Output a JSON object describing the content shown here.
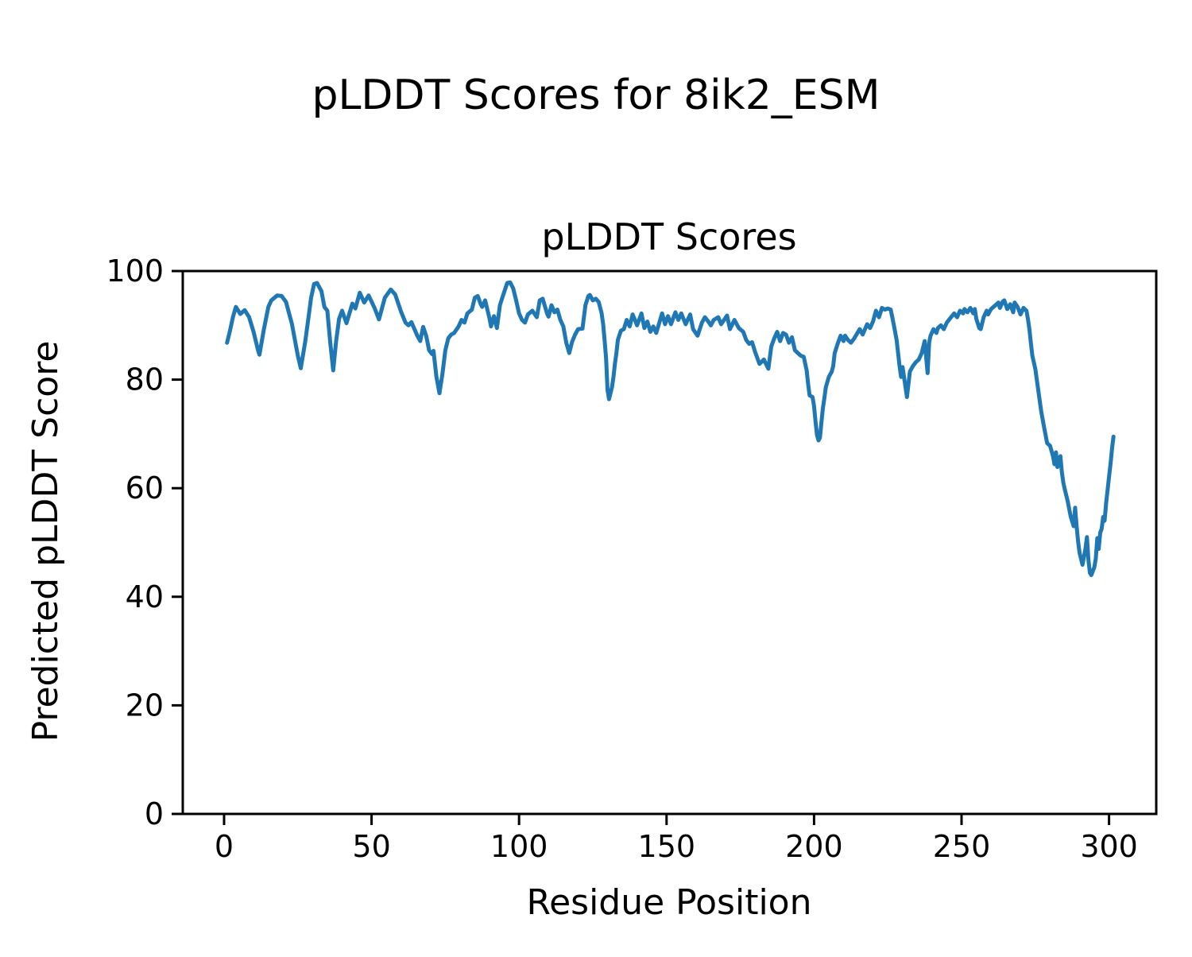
{
  "figure": {
    "suptitle": "pLDDT Scores for 8ik2_ESM",
    "background_color": "#ffffff",
    "text_color": "#000000"
  },
  "chart_data": {
    "type": "line",
    "title": "pLDDT Scores",
    "xlabel": "Residue Position",
    "ylabel": "Predicted pLDDT Score",
    "xlim": [
      -14,
      316
    ],
    "ylim": [
      0,
      100
    ],
    "xticks": [
      0,
      50,
      100,
      150,
      200,
      250,
      300
    ],
    "yticks": [
      0,
      20,
      40,
      60,
      80,
      100
    ],
    "grid": false,
    "legend": "none",
    "line_color": "#1f77b4",
    "line_width": 5,
    "spine_color": "#000000",
    "series": [
      {
        "name": "pLDDT",
        "x": [
          1,
          2,
          3,
          4,
          5.5,
          7,
          8.5,
          10,
          11.5,
          12,
          13.5,
          15,
          16,
          18,
          19.5,
          21,
          23,
          24,
          25,
          26,
          27.5,
          28.5,
          29.5,
          30.5,
          31.5,
          33,
          34,
          35,
          36,
          37,
          38,
          39,
          40,
          41.5,
          43.5,
          44.5,
          46,
          47.5,
          49,
          51,
          52.5,
          54.5,
          56.5,
          58,
          60,
          61.5,
          62.5,
          63.5,
          65.5,
          66.5,
          67.5,
          68.5,
          69.5,
          70.5,
          71,
          72,
          73,
          74,
          75,
          76,
          77,
          78,
          79.5,
          80.5,
          81.5,
          82.5,
          84,
          85,
          86,
          87,
          87.5,
          88.5,
          90,
          90.5,
          91.5,
          92.5,
          93.5,
          94.5,
          96,
          97,
          98,
          99,
          100,
          101,
          102,
          103,
          104.5,
          106,
          107,
          108,
          109.5,
          110,
          111,
          112,
          113,
          114,
          115,
          116,
          117,
          118,
          119,
          120,
          121.5,
          122.5,
          123.5,
          124,
          125,
          126,
          127,
          128,
          128.5,
          129,
          129.5,
          130,
          130.5,
          131.5,
          132,
          132.5,
          133,
          133.5,
          134.5,
          135.5,
          136.5,
          137.5,
          138.5,
          140,
          141.5,
          142.5,
          143.5,
          144.5,
          145.5,
          146.5,
          148.5,
          149.5,
          150.5,
          151.5,
          153,
          154,
          155,
          156.5,
          158,
          159,
          160.5,
          162,
          163,
          164,
          165,
          166,
          167.5,
          168.5,
          170.5,
          171.5,
          173,
          174.5,
          176,
          177,
          178,
          179,
          180,
          181.5,
          183,
          184.5,
          185.5,
          186.5,
          187.5,
          188.5,
          189.5,
          190.5,
          191.5,
          192.5,
          193.5,
          194.5,
          195.5,
          196.5,
          197.5,
          198,
          198.5,
          199.5,
          200,
          200.5,
          201,
          201.5,
          202,
          202.5,
          203,
          203.5,
          204,
          205,
          206,
          206.5,
          207,
          208,
          209,
          210,
          210.5,
          211.5,
          212.5,
          213.5,
          214.5,
          215.5,
          216.5,
          218,
          219,
          220,
          221,
          222,
          223,
          224,
          225,
          226,
          227,
          228,
          229,
          229.5,
          230,
          231.5,
          232.5,
          233.5,
          234.5,
          235.5,
          236.5,
          237.5,
          238.5,
          239,
          239.5,
          240.5,
          241.5,
          242,
          243,
          244,
          245,
          246,
          247.5,
          248.5,
          249.5,
          250.5,
          251,
          252,
          253,
          254,
          254.5,
          255,
          256,
          256.5,
          257.5,
          258.5,
          259,
          260,
          261.5,
          262.5,
          263,
          264,
          264.5,
          265.5,
          266.5,
          267.5,
          268,
          269,
          270,
          271,
          272,
          272.5,
          273,
          273.5,
          274,
          275,
          276,
          277,
          278,
          279,
          280,
          281,
          281.5,
          282,
          282.5,
          283.5,
          284,
          284.5,
          285,
          286,
          287,
          288,
          288.5,
          289,
          289.5,
          290,
          291,
          292,
          292.5,
          293,
          293.5,
          294,
          295,
          295.5,
          296,
          296.5,
          297,
          297.5,
          298,
          298.5,
          299,
          300,
          300.5,
          301,
          301.5
        ],
        "y": [
          86.8,
          89,
          91.5,
          93.4,
          92.1,
          92.8,
          91.5,
          88.8,
          85.4,
          84.6,
          89.3,
          93.4,
          94.6,
          95.5,
          95.4,
          94.3,
          90.3,
          87.3,
          84.4,
          82.1,
          87,
          91,
          95.1,
          97.6,
          97.8,
          96.3,
          93.4,
          92.7,
          86.8,
          81.7,
          87.1,
          91.2,
          92.7,
          90.4,
          94,
          93.1,
          96,
          94.2,
          95.5,
          93.2,
          91.1,
          95.1,
          96.6,
          95.7,
          92.5,
          90.5,
          90,
          90.6,
          88.1,
          87.1,
          89.7,
          88.1,
          85.4,
          84.7,
          85.3,
          80.5,
          77.5,
          81,
          85.4,
          87.6,
          88.3,
          88.6,
          89.8,
          91,
          90.5,
          92.2,
          92.9,
          95.1,
          95.4,
          93.9,
          93.4,
          94.6,
          91.2,
          89.8,
          91.7,
          89.5,
          93.7,
          95.4,
          97.8,
          97.9,
          96.8,
          94.6,
          92.2,
          91,
          90.5,
          92,
          92.7,
          91.5,
          94.6,
          94.9,
          92.2,
          91.6,
          93.7,
          92.4,
          92.9,
          91,
          89.8,
          86.8,
          84.9,
          87,
          88.3,
          89.3,
          89.4,
          93.7,
          95.4,
          95.6,
          94.6,
          94.9,
          94.3,
          92.2,
          90.2,
          87.3,
          83.9,
          78.1,
          76.4,
          78.6,
          80.5,
          82.9,
          84.9,
          87.3,
          89,
          89.3,
          91,
          89.8,
          92,
          90,
          92.2,
          89.5,
          90.7,
          88.8,
          89.8,
          88.6,
          92.2,
          90.2,
          91.7,
          90.2,
          92.4,
          91,
          92.2,
          90.2,
          92,
          89.3,
          88.1,
          90.5,
          91.5,
          90.8,
          90,
          91,
          91.5,
          90.2,
          91.8,
          89.3,
          91,
          89.5,
          88.8,
          87.3,
          86.6,
          86.9,
          85.1,
          82.9,
          83.7,
          82,
          86.1,
          87.6,
          88.8,
          87.1,
          88.6,
          88.3,
          86.8,
          87.8,
          85.4,
          84.9,
          84.4,
          84.2,
          81.7,
          79.1,
          77.1,
          76.8,
          75.1,
          72.2,
          69.8,
          68.8,
          69.3,
          72.2,
          74.7,
          76.6,
          78.6,
          80.5,
          81.5,
          82.5,
          84.9,
          86.6,
          88.1,
          87.1,
          88.1,
          87.3,
          86.8,
          87.5,
          88.4,
          89.3,
          88.3,
          90.2,
          89.5,
          90.7,
          92.7,
          91.5,
          93.2,
          92.9,
          93.1,
          92.9,
          90.2,
          87.3,
          82.5,
          80.5,
          82.3,
          76.8,
          81.5,
          82.5,
          83.2,
          83.7,
          84.9,
          87.1,
          81.2,
          86.8,
          88.1,
          89.3,
          88.6,
          89.5,
          90,
          89.3,
          90.5,
          91.2,
          92.2,
          91.5,
          92.7,
          92.2,
          93,
          92.4,
          93.2,
          92.2,
          93,
          91.2,
          89.5,
          89.3,
          91.5,
          92.7,
          92,
          93,
          93.7,
          94.2,
          93.2,
          94.4,
          94.6,
          93,
          93.9,
          92.4,
          94.2,
          93.4,
          92,
          93.2,
          92.7,
          91.2,
          89.3,
          86.8,
          84.4,
          82,
          78.1,
          74.2,
          71.2,
          68.3,
          67.8,
          65.9,
          64.4,
          66.6,
          63.9,
          65.9,
          63,
          61,
          59.8,
          57.6,
          54.8,
          53,
          56.4,
          53,
          50.3,
          48.1,
          45.9,
          48.8,
          51,
          46.9,
          44.4,
          44,
          45.4,
          47,
          50.8,
          48.8,
          51.8,
          52.5,
          54.7,
          54,
          57.2,
          62.1,
          64.5,
          67.2,
          69.5
        ]
      }
    ]
  }
}
